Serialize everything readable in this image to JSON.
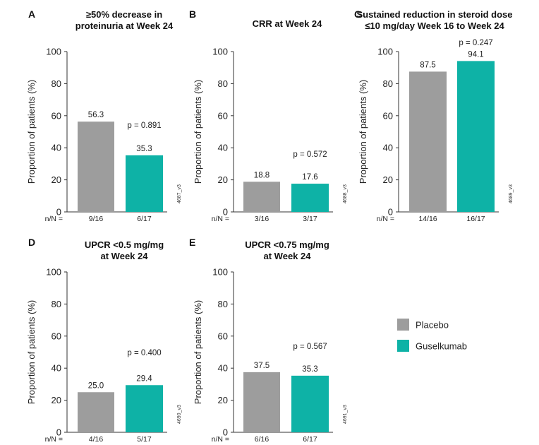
{
  "legend": {
    "items": [
      {
        "label": "Placebo",
        "color": "#9d9d9d"
      },
      {
        "label": "Guselkumab",
        "color": "#0eb2a6"
      }
    ]
  },
  "chart_data": [
    {
      "panel": "A",
      "type": "bar",
      "title": [
        "≥50% decrease in",
        "proteinuria at Week 24"
      ],
      "ylabel": "Proportion of patients (%)",
      "ylim": [
        0,
        100
      ],
      "yticks": [
        0,
        20,
        40,
        60,
        80,
        100
      ],
      "n_prefix": "n/N =",
      "series": [
        {
          "name": "Placebo",
          "value": 56.3,
          "value_label": "56.3",
          "n": "9/16"
        },
        {
          "name": "Guselkumab",
          "value": 35.3,
          "value_label": "35.3",
          "n": "6/17"
        }
      ],
      "pvalue": "p = 0.891",
      "code": "4687_v3"
    },
    {
      "panel": "B",
      "type": "bar",
      "title": [
        "CRR at Week 24"
      ],
      "ylabel": "Proportion of patients (%)",
      "ylim": [
        0,
        100
      ],
      "yticks": [
        0,
        20,
        40,
        60,
        80,
        100
      ],
      "n_prefix": "n/N =",
      "series": [
        {
          "name": "Placebo",
          "value": 18.8,
          "value_label": "18.8",
          "n": "3/16"
        },
        {
          "name": "Guselkumab",
          "value": 17.6,
          "value_label": "17.6",
          "n": "3/17"
        }
      ],
      "pvalue": "p = 0.572",
      "code": "4688_v3"
    },
    {
      "panel": "C",
      "type": "bar",
      "title": [
        "Sustained reduction in steroid dose",
        "≤10 mg/day Week 16 to Week 24"
      ],
      "ylabel": "Proportion of patients (%)",
      "ylim": [
        0,
        100
      ],
      "yticks": [
        0,
        20,
        40,
        60,
        80,
        100
      ],
      "n_prefix": "n/N =",
      "series": [
        {
          "name": "Placebo",
          "value": 87.5,
          "value_label": "87.5",
          "n": "14/16"
        },
        {
          "name": "Guselkumab",
          "value": 94.1,
          "value_label": "94.1",
          "n": "16/17"
        }
      ],
      "pvalue": "p = 0.247",
      "code": "4689_v3"
    },
    {
      "panel": "D",
      "type": "bar",
      "title": [
        "UPCR <0.5 mg/mg",
        "at Week 24"
      ],
      "ylabel": "Proportion of patients (%)",
      "ylim": [
        0,
        100
      ],
      "yticks": [
        0,
        20,
        40,
        60,
        80,
        100
      ],
      "n_prefix": "n/N =",
      "series": [
        {
          "name": "Placebo",
          "value": 25.0,
          "value_label": "25.0",
          "n": "4/16"
        },
        {
          "name": "Guselkumab",
          "value": 29.4,
          "value_label": "29.4",
          "n": "5/17"
        }
      ],
      "pvalue": "p = 0.400",
      "code": "4690_v3"
    },
    {
      "panel": "E",
      "type": "bar",
      "title": [
        "UPCR <0.75 mg/mg",
        "at Week 24"
      ],
      "ylabel": "Proportion of patients (%)",
      "ylim": [
        0,
        100
      ],
      "yticks": [
        0,
        20,
        40,
        60,
        80,
        100
      ],
      "n_prefix": "n/N =",
      "series": [
        {
          "name": "Placebo",
          "value": 37.5,
          "value_label": "37.5",
          "n": "6/16"
        },
        {
          "name": "Guselkumab",
          "value": 35.3,
          "value_label": "35.3",
          "n": "6/17"
        }
      ],
      "pvalue": "p = 0.567",
      "code": "4691_v3"
    }
  ]
}
